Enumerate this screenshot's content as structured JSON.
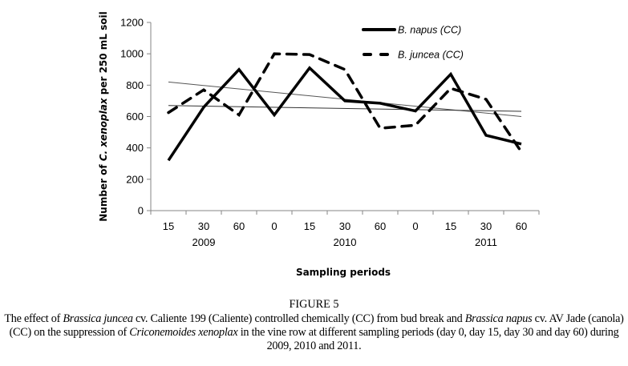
{
  "chart_data": {
    "type": "line",
    "title": "",
    "xlabel": "Sampling periods",
    "ylabel_parts": [
      "Number of ",
      "C. xenoplax",
      " per 250 mL soil"
    ],
    "ylim": [
      0,
      1200
    ],
    "yticks": [
      0,
      200,
      400,
      600,
      800,
      1000,
      1200
    ],
    "categories": [
      "15",
      "30",
      "60",
      "0",
      "15",
      "30",
      "60",
      "0",
      "15",
      "30",
      "60"
    ],
    "category_groups": [
      {
        "label": "2009",
        "center_index": 1
      },
      {
        "label": "2010",
        "center_index": 5
      },
      {
        "label": "2011",
        "center_index": 9
      }
    ],
    "grid": false,
    "legend_position": "top-right",
    "series": [
      {
        "name": "B. napus (CC)",
        "style": "solid",
        "color": "#000000",
        "values": [
          320,
          660,
          900,
          610,
          910,
          700,
          685,
          635,
          870,
          480,
          425
        ]
      },
      {
        "name": "B. juncea (CC)",
        "style": "dashed",
        "color": "#000000",
        "values": [
          625,
          770,
          610,
          1000,
          995,
          900,
          525,
          545,
          780,
          710,
          375
        ]
      }
    ],
    "trendlines": [
      {
        "name": "linear trend 1",
        "color": "#555555",
        "start": 820,
        "end": 600
      },
      {
        "name": "linear trend 2",
        "color": "#333333",
        "start": 670,
        "end": 633
      }
    ]
  },
  "figure": {
    "label": "FIGURE 5",
    "caption_segments": [
      {
        "text": "The effect of ",
        "italic": false
      },
      {
        "text": "Brassica juncea",
        "italic": true
      },
      {
        "text": " cv. Caliente 199 (Caliente) controlled chemically (CC) from bud break and ",
        "italic": false
      },
      {
        "text": "Brassica napus",
        "italic": true
      },
      {
        "text": " cv. AV Jade (canola) (CC) on the suppression of ",
        "italic": false
      },
      {
        "text": "Criconemoides xenoplax",
        "italic": true
      },
      {
        "text": " in the vine row at different sampling periods (day 0, day 15, day 30 and day 60) during 2009, 2010 and 2011.",
        "italic": false
      }
    ]
  }
}
